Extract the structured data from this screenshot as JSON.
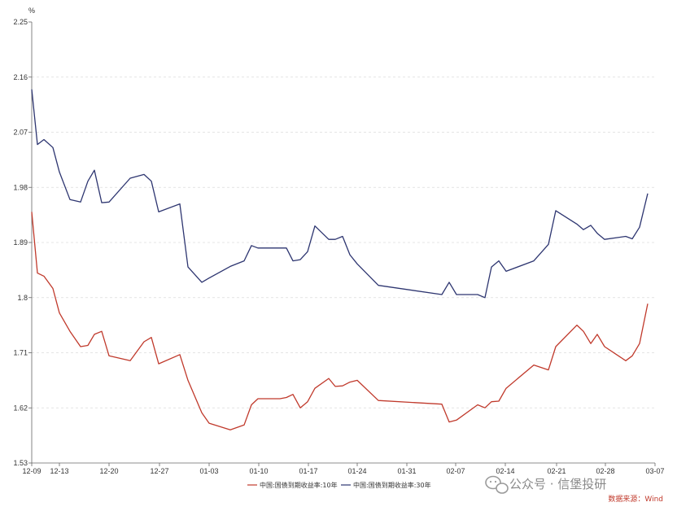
{
  "chart_data": {
    "type": "line",
    "ylabel": "%",
    "ylim": [
      1.53,
      2.25
    ],
    "yticks": [
      "2.25",
      "2.16",
      "2.07",
      "1.98",
      "1.89",
      "1.8",
      "1.71",
      "1.62",
      "1.53"
    ],
    "xticks": [
      "12-09",
      "12-13",
      "12-20",
      "12-27",
      "01-03",
      "01-10",
      "01-17",
      "01-24",
      "01-31",
      "02-07",
      "02-14",
      "02-21",
      "02-28",
      "03-07"
    ],
    "grid": "horizontal dashed",
    "legend_position": "bottom",
    "series": [
      {
        "name": "中国:国债到期收益率:10年",
        "color": "#c0392b",
        "values": [
          1.94,
          1.84,
          1.835,
          1.815,
          1.775,
          1.745,
          1.72,
          1.722,
          1.74,
          1.745,
          1.705,
          1.697,
          1.728,
          1.735,
          1.692,
          1.707,
          1.665,
          1.612,
          1.595,
          1.584,
          1.592,
          1.625,
          1.635,
          1.635,
          1.637,
          1.642,
          1.62,
          1.63,
          1.652,
          1.668,
          1.655,
          1.656,
          1.662,
          1.665,
          1.632,
          1.626,
          1.597,
          1.6,
          1.625,
          1.62,
          1.63,
          1.631,
          1.652,
          1.69,
          1.682,
          1.72,
          1.755,
          1.745,
          1.725,
          1.74,
          1.72,
          1.697,
          1.705,
          1.725,
          1.79
        ]
      },
      {
        "name": "中国:国债到期收益率:30年",
        "color": "#2d3570",
        "values": [
          2.14,
          2.05,
          2.058,
          2.045,
          2.005,
          1.96,
          1.956,
          1.99,
          2.008,
          1.955,
          1.956,
          1.995,
          2.001,
          1.99,
          1.94,
          1.953,
          1.85,
          1.825,
          1.832,
          1.851,
          1.86,
          1.885,
          1.881,
          1.881,
          1.881,
          1.86,
          1.862,
          1.875,
          1.917,
          1.895,
          1.895,
          1.9,
          1.87,
          1.855,
          1.82,
          1.805,
          1.825,
          1.805,
          1.805,
          1.8,
          1.85,
          1.86,
          1.843,
          1.86,
          1.887,
          1.942,
          1.92,
          1.911,
          1.918,
          1.905,
          1.895,
          1.9,
          1.896,
          1.915,
          1.97
        ]
      }
    ]
  },
  "source_text": "数据来源：Wind",
  "watermark_text": "公众号 · 信堡投研"
}
